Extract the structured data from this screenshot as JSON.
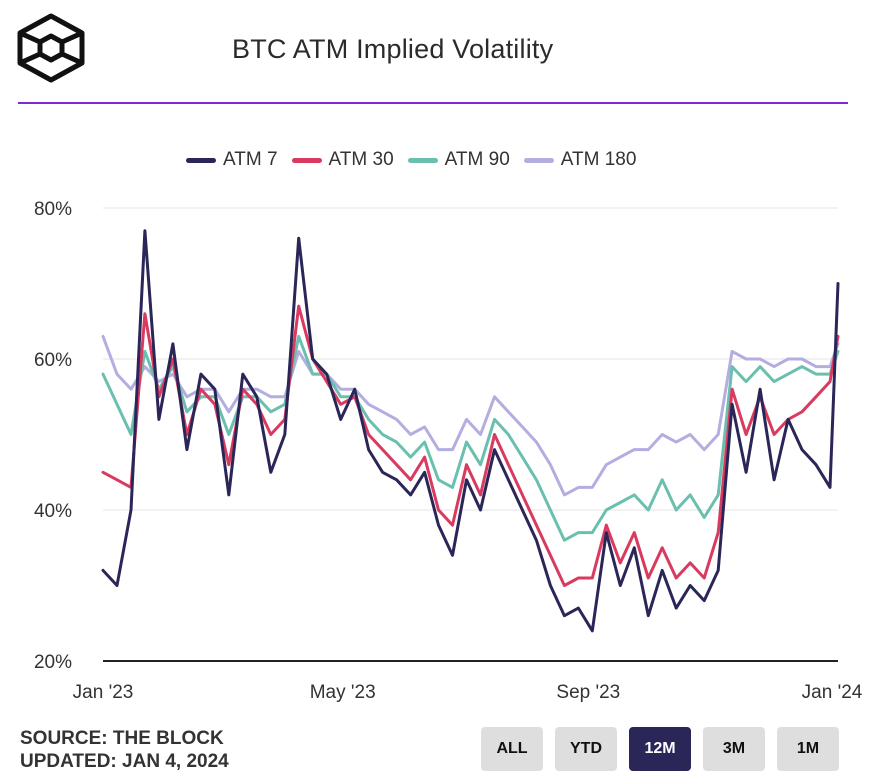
{
  "header": {
    "title": "BTC ATM Implied Volatility"
  },
  "footer": {
    "source": "SOURCE: THE BLOCK",
    "updated": "UPDATED: JAN 4, 2024"
  },
  "range_buttons": [
    {
      "label": "ALL",
      "active": false
    },
    {
      "label": "YTD",
      "active": false
    },
    {
      "label": "12M",
      "active": true
    },
    {
      "label": "3M",
      "active": false
    },
    {
      "label": "1M",
      "active": false
    }
  ],
  "colors": {
    "accent": "#7a2bd6",
    "button_active": "#2a2658",
    "button_inactive": "#dedede"
  },
  "chart_data": {
    "type": "line",
    "title": "BTC ATM Implied Volatility",
    "xlabel": "",
    "ylabel": "",
    "y_tick_labels": [
      "20%",
      "40%",
      "60%",
      "80%"
    ],
    "y_ticks": [
      20,
      40,
      60,
      80
    ],
    "ylim": [
      20,
      80
    ],
    "x_tick_labels": [
      "Jan '23",
      "May '23",
      "Sep '23",
      "Jan '24"
    ],
    "x_ticks": [
      "2023-01-01",
      "2023-05-01",
      "2023-09-01",
      "2024-01-01"
    ],
    "xlim": [
      "2023-01-01",
      "2024-01-04"
    ],
    "grid": "horizontal",
    "legend": "top",
    "x": [
      "2023-01-01",
      "2023-01-08",
      "2023-01-15",
      "2023-01-22",
      "2023-01-29",
      "2023-02-05",
      "2023-02-12",
      "2023-02-19",
      "2023-02-26",
      "2023-03-05",
      "2023-03-12",
      "2023-03-19",
      "2023-03-26",
      "2023-04-02",
      "2023-04-09",
      "2023-04-16",
      "2023-04-23",
      "2023-04-30",
      "2023-05-07",
      "2023-05-14",
      "2023-05-21",
      "2023-05-28",
      "2023-06-04",
      "2023-06-11",
      "2023-06-18",
      "2023-06-25",
      "2023-07-02",
      "2023-07-09",
      "2023-07-16",
      "2023-07-23",
      "2023-07-30",
      "2023-08-06",
      "2023-08-13",
      "2023-08-20",
      "2023-08-27",
      "2023-09-03",
      "2023-09-10",
      "2023-09-17",
      "2023-09-24",
      "2023-10-01",
      "2023-10-08",
      "2023-10-15",
      "2023-10-22",
      "2023-10-29",
      "2023-11-05",
      "2023-11-12",
      "2023-11-19",
      "2023-11-26",
      "2023-12-03",
      "2023-12-10",
      "2023-12-17",
      "2023-12-24",
      "2023-12-31",
      "2024-01-04"
    ],
    "series": [
      {
        "name": "ATM 7",
        "color": "#2a2658",
        "values": [
          32,
          30,
          40,
          77,
          52,
          62,
          48,
          58,
          56,
          42,
          58,
          55,
          45,
          50,
          76,
          60,
          58,
          52,
          56,
          48,
          45,
          44,
          42,
          45,
          38,
          34,
          44,
          40,
          48,
          44,
          40,
          36,
          30,
          26,
          27,
          24,
          37,
          30,
          35,
          26,
          32,
          27,
          30,
          28,
          32,
          54,
          45,
          56,
          44,
          52,
          48,
          46,
          43,
          70
        ]
      },
      {
        "name": "ATM 30",
        "color": "#d93a60",
        "values": [
          45,
          44,
          43,
          66,
          55,
          60,
          50,
          56,
          54,
          46,
          56,
          54,
          50,
          52,
          67,
          60,
          57,
          54,
          55,
          50,
          48,
          46,
          44,
          47,
          40,
          38,
          46,
          42,
          50,
          46,
          42,
          38,
          34,
          30,
          31,
          31,
          38,
          33,
          37,
          31,
          35,
          31,
          33,
          31,
          37,
          56,
          50,
          55,
          50,
          52,
          53,
          55,
          57,
          63
        ]
      },
      {
        "name": "ATM 90",
        "color": "#6bbfae",
        "values": [
          58,
          54,
          50,
          61,
          56,
          59,
          53,
          55,
          55,
          50,
          55,
          55,
          53,
          54,
          63,
          58,
          58,
          55,
          55,
          52,
          50,
          49,
          47,
          49,
          44,
          43,
          49,
          46,
          52,
          50,
          47,
          44,
          40,
          36,
          37,
          37,
          40,
          41,
          42,
          40,
          44,
          40,
          42,
          39,
          42,
          59,
          57,
          59,
          57,
          58,
          59,
          58,
          58,
          61
        ]
      },
      {
        "name": "ATM 180",
        "color": "#b3aee0",
        "values": [
          63,
          58,
          56,
          59,
          57,
          58,
          55,
          56,
          56,
          53,
          56,
          56,
          55,
          55,
          61,
          58,
          58,
          56,
          56,
          54,
          53,
          52,
          50,
          51,
          48,
          48,
          52,
          50,
          55,
          53,
          51,
          49,
          46,
          42,
          43,
          43,
          46,
          47,
          48,
          48,
          50,
          49,
          50,
          48,
          50,
          61,
          60,
          60,
          59,
          60,
          60,
          59,
          59,
          62
        ]
      }
    ]
  }
}
